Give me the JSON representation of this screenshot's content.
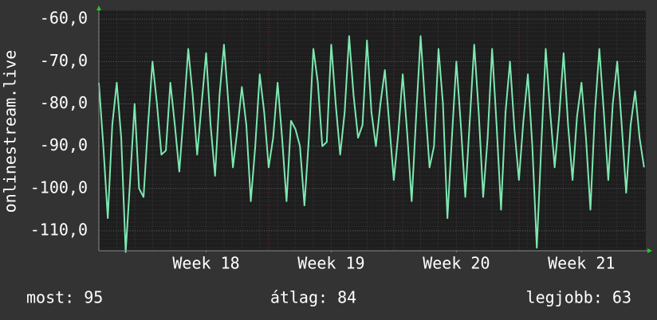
{
  "chart_data": {
    "type": "line",
    "y_label": "onlinestream.live",
    "color": "#7de8b0",
    "xlim": [
      0,
      30.6
    ],
    "ylim": [
      -114.7,
      -57.9
    ],
    "xticks": [
      {
        "value": 6,
        "label": "Week 18"
      },
      {
        "value": 13,
        "label": "Week 19"
      },
      {
        "value": 20,
        "label": "Week 20"
      },
      {
        "value": 27,
        "label": "Week 21"
      }
    ],
    "yticks": [
      {
        "value": -60,
        "label": "-60,0"
      },
      {
        "value": -70,
        "label": "-70,0"
      },
      {
        "value": -80,
        "label": "-80,0"
      },
      {
        "value": -90,
        "label": "-90,0"
      },
      {
        "value": -100,
        "label": "-100,0"
      },
      {
        "value": -110,
        "label": "-110,0"
      }
    ],
    "grid": true,
    "x": [
      0,
      0.25,
      0.5,
      0.75,
      1,
      1.25,
      1.5,
      1.75,
      2,
      2.25,
      2.5,
      2.75,
      3,
      3.25,
      3.5,
      3.75,
      4,
      4.25,
      4.5,
      4.75,
      5,
      5.25,
      5.5,
      5.75,
      6,
      6.25,
      6.5,
      6.75,
      7,
      7.25,
      7.5,
      7.75,
      8,
      8.25,
      8.5,
      8.75,
      9,
      9.25,
      9.5,
      9.75,
      10,
      10.25,
      10.5,
      10.75,
      11,
      11.25,
      11.5,
      11.75,
      12,
      12.25,
      12.5,
      12.75,
      13,
      13.25,
      13.5,
      13.75,
      14,
      14.25,
      14.5,
      14.75,
      15,
      15.25,
      15.5,
      15.75,
      16,
      16.25,
      16.5,
      16.75,
      17,
      17.25,
      17.5,
      17.75,
      18,
      18.25,
      18.5,
      18.75,
      19,
      19.25,
      19.5,
      19.75,
      20,
      20.25,
      20.5,
      20.75,
      21,
      21.25,
      21.5,
      21.75,
      22,
      22.25,
      22.5,
      22.75,
      23,
      23.25,
      23.5,
      23.75,
      24,
      24.25,
      24.5,
      24.75,
      25,
      25.25,
      25.5,
      25.75,
      26,
      26.25,
      26.5,
      26.75,
      27,
      27.25,
      27.5,
      27.75,
      28,
      28.25,
      28.5,
      28.75,
      29,
      29.25,
      29.5,
      29.75,
      30,
      30.25,
      30.5
    ],
    "values": [
      -75,
      -90,
      -107,
      -85,
      -75,
      -88,
      -115,
      -98,
      -80,
      -100,
      -102,
      -85,
      -70,
      -80,
      -92,
      -91,
      -75,
      -85,
      -96,
      -82,
      -67,
      -78,
      -92,
      -80,
      -68,
      -85,
      -97,
      -78,
      -66,
      -80,
      -95,
      -86,
      -76,
      -85,
      -103,
      -90,
      -73,
      -82,
      -95,
      -88,
      -75,
      -88,
      -103,
      -84,
      -86,
      -90,
      -104,
      -88,
      -67,
      -75,
      -90,
      -89,
      -66,
      -80,
      -92,
      -82,
      -64,
      -78,
      -88,
      -85,
      -65,
      -82,
      -90,
      -80,
      -72,
      -85,
      -98,
      -87,
      -73,
      -87,
      -103,
      -83,
      -64,
      -80,
      -95,
      -90,
      -67,
      -80,
      -107,
      -88,
      -70,
      -85,
      -102,
      -84,
      -66,
      -82,
      -102,
      -88,
      -67,
      -85,
      -105,
      -82,
      -70,
      -86,
      -98,
      -84,
      -73,
      -90,
      -114,
      -90,
      -67,
      -82,
      -95,
      -83,
      -68,
      -85,
      -98,
      -83,
      -75,
      -88,
      -105,
      -82,
      -67,
      -82,
      -98,
      -80,
      -70,
      -85,
      -101,
      -85,
      -77,
      -88,
      -95
    ],
    "stats": [
      "most: 95",
      "átlag: 84",
      "legjobb: 63"
    ]
  }
}
